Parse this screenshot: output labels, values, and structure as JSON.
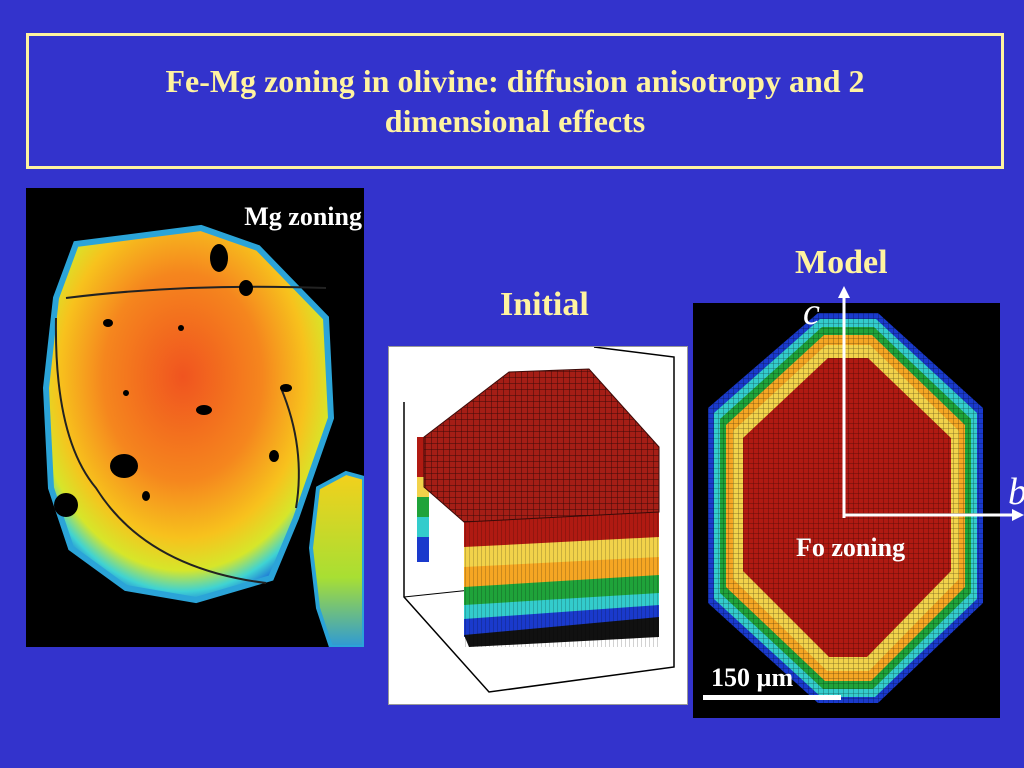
{
  "title": {
    "line1": "Fe-Mg zoning in olivine: diffusion anisotropy and 2",
    "line2": "dimensional effects"
  },
  "mg_panel": {
    "label": "Mg zoning"
  },
  "initial_panel": {
    "label": "Initial"
  },
  "model_panel": {
    "label": "Model",
    "axis_c": "c",
    "axis_b": "b",
    "zoning_label": "Fo zoning",
    "scale_label": "150 µm"
  },
  "colors": {
    "background": "#3333cc",
    "title_text": "#fff3a0",
    "core": "#b01a12",
    "rim_yellow": "#f2d24a",
    "rim_green": "#1fa33a",
    "rim_cyan": "#33cccc",
    "rim_blue": "#1a3acc"
  }
}
